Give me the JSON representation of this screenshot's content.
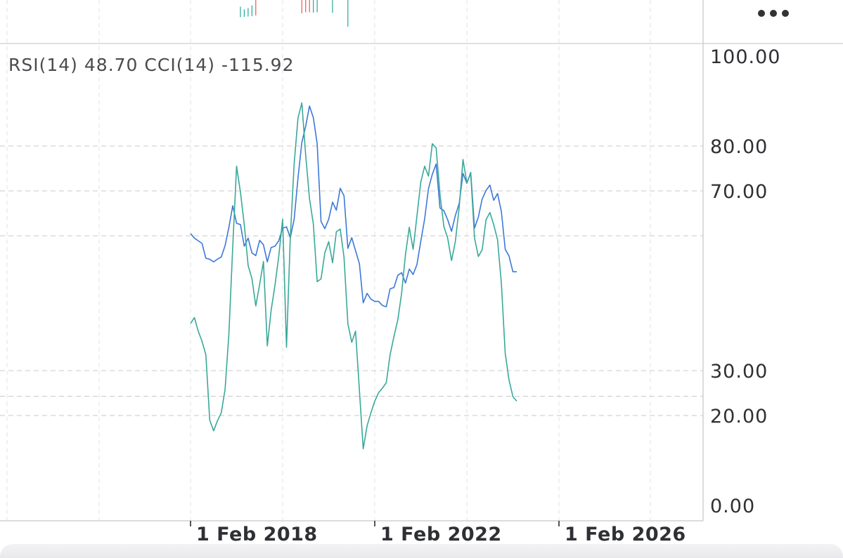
{
  "menu": {
    "more_icon": "more-horizontal-icon"
  },
  "indicator_header": {
    "rsi_label": "RSI(14)",
    "rsi_value": "48.70",
    "cci_label": "CCI(14)",
    "cci_value": "-115.92"
  },
  "colors": {
    "rsi": "#3d78d8",
    "cci": "#3aa899",
    "grid": "#c9c9c9",
    "up": "#26a69a",
    "down": "#ef5350"
  },
  "chart_data": {
    "type": "line",
    "ylim": [
      0,
      100
    ],
    "y_ticks": [
      "100.00",
      "80.00",
      "70.00",
      "30.00",
      "20.00",
      "0.00"
    ],
    "x_ticks": [
      {
        "date": "2018-02-01",
        "label": "1 Feb 2018"
      },
      {
        "date": "2022-02-01",
        "label": "1 Feb 2022"
      },
      {
        "date": "2026-02-01",
        "label": "1 Feb 2026"
      }
    ],
    "dashed_levels": [
      80,
      70,
      60,
      30,
      24.3,
      20
    ],
    "series": [
      {
        "name": "RSI(14)",
        "points": [
          [
            "2018-02",
            60.5
          ],
          [
            "2018-03",
            59.5
          ],
          [
            "2018-04",
            58.9
          ],
          [
            "2018-05",
            58.3
          ],
          [
            "2018-06",
            55
          ],
          [
            "2018-07",
            54.8
          ],
          [
            "2018-08",
            54.2
          ],
          [
            "2018-09",
            54.8
          ],
          [
            "2018-10",
            55.3
          ],
          [
            "2018-11",
            57.8
          ],
          [
            "2018-12",
            61.9
          ],
          [
            "2019-01",
            66.7
          ],
          [
            "2019-02",
            62.8
          ],
          [
            "2019-03",
            62.5
          ],
          [
            "2019-04",
            57.7
          ],
          [
            "2019-05",
            59.5
          ],
          [
            "2019-06",
            56.2
          ],
          [
            "2019-07",
            55.6
          ],
          [
            "2019-08",
            59
          ],
          [
            "2019-09",
            58
          ],
          [
            "2019-10",
            54.2
          ],
          [
            "2019-11",
            57.4
          ],
          [
            "2019-12",
            57.7
          ],
          [
            "2020-01",
            58.9
          ],
          [
            "2020-02",
            61.7
          ],
          [
            "2020-03",
            62
          ],
          [
            "2020-04",
            59.6
          ],
          [
            "2020-05",
            63.7
          ],
          [
            "2020-06",
            72.8
          ],
          [
            "2020-07",
            80.8
          ],
          [
            "2020-08",
            84.4
          ],
          [
            "2020-09",
            88.9
          ],
          [
            "2020-10",
            86.3
          ],
          [
            "2020-11",
            80.5
          ],
          [
            "2020-12",
            63.2
          ],
          [
            "2021-01",
            61.6
          ],
          [
            "2021-02",
            63.7
          ],
          [
            "2021-03",
            67.5
          ],
          [
            "2021-04",
            65.7
          ],
          [
            "2021-05",
            70.6
          ],
          [
            "2021-06",
            68.9
          ],
          [
            "2021-07",
            57.2
          ],
          [
            "2021-08",
            59.6
          ],
          [
            "2021-09",
            56.7
          ],
          [
            "2021-10",
            53.8
          ],
          [
            "2021-11",
            45.1
          ],
          [
            "2021-12",
            47.2
          ],
          [
            "2021-13",
            45.9
          ],
          [
            "2022-02",
            45.4
          ],
          [
            "2022-03",
            45.4
          ],
          [
            "2022-04",
            44.5
          ],
          [
            "2022-05",
            44.2
          ],
          [
            "2022-06",
            48.2
          ],
          [
            "2022-07",
            48.5
          ],
          [
            "2022-08",
            51.2
          ],
          [
            "2022-09",
            51.8
          ],
          [
            "2022-10",
            49.5
          ],
          [
            "2022-11",
            52.6
          ],
          [
            "2022-12",
            51.4
          ],
          [
            "2023-01",
            53.6
          ],
          [
            "2023-02",
            58.8
          ],
          [
            "2023-03",
            63.8
          ],
          [
            "2023-04",
            70.5
          ],
          [
            "2023-05",
            73.7
          ],
          [
            "2023-06",
            76
          ],
          [
            "2023-07",
            66.2
          ],
          [
            "2023-08",
            65.6
          ],
          [
            "2023-09",
            63.6
          ],
          [
            "2023-10",
            61
          ],
          [
            "2023-11",
            64.5
          ],
          [
            "2023-12",
            67.2
          ],
          [
            "2024-01",
            73.9
          ],
          [
            "2024-02",
            71.7
          ],
          [
            "2024-03",
            74.1
          ],
          [
            "2024-04",
            61.7
          ],
          [
            "2024-05",
            64.2
          ],
          [
            "2024-06",
            68.2
          ],
          [
            "2024-07",
            70.1
          ],
          [
            "2024-08",
            71.3
          ],
          [
            "2024-09",
            67.9
          ],
          [
            "2024-10",
            69.4
          ],
          [
            "2024-11",
            65.4
          ],
          [
            "2024-12",
            57
          ],
          [
            "2025-01",
            55.5
          ],
          [
            "2025-02",
            52
          ],
          [
            "2025-03",
            52
          ]
        ]
      },
      {
        "name": "CCI(14)",
        "points": [
          [
            "2018-02",
            40.5
          ],
          [
            "2018-03",
            41.8
          ],
          [
            "2018-04",
            38.8
          ],
          [
            "2018-05",
            36.5
          ],
          [
            "2018-06",
            33.5
          ],
          [
            "2018-07",
            19
          ],
          [
            "2018-08",
            16.6
          ],
          [
            "2018-09",
            18.8
          ],
          [
            "2018-10",
            20.6
          ],
          [
            "2018-11",
            25.8
          ],
          [
            "2018-12",
            38.3
          ],
          [
            "2019-01",
            57.5
          ],
          [
            "2019-02",
            75.5
          ],
          [
            "2019-03",
            69.7
          ],
          [
            "2019-04",
            62.5
          ],
          [
            "2019-05",
            53.4
          ],
          [
            "2019-06",
            50.5
          ],
          [
            "2019-07",
            44.4
          ],
          [
            "2019-08",
            49.2
          ],
          [
            "2019-09",
            54.3
          ],
          [
            "2019-10",
            35.5
          ],
          [
            "2019-11",
            43.4
          ],
          [
            "2019-12",
            49
          ],
          [
            "2020-01",
            55.5
          ],
          [
            "2020-02",
            63.7
          ],
          [
            "2020-03",
            35.2
          ],
          [
            "2020-04",
            59.7
          ],
          [
            "2020-05",
            76.1
          ],
          [
            "2020-06",
            86.2
          ],
          [
            "2020-07",
            89.6
          ],
          [
            "2020-08",
            77.9
          ],
          [
            "2020-09",
            68.3
          ],
          [
            "2020-10",
            62.6
          ],
          [
            "2020-11",
            49.8
          ],
          [
            "2020-12",
            50.4
          ],
          [
            "2021-01",
            56.2
          ],
          [
            "2021-02",
            58.7
          ],
          [
            "2021-03",
            54
          ],
          [
            "2021-04",
            60.9
          ],
          [
            "2021-05",
            61.5
          ],
          [
            "2021-06",
            55.2
          ],
          [
            "2021-07",
            40.4
          ],
          [
            "2021-08",
            36.3
          ],
          [
            "2021-09",
            38.8
          ],
          [
            "2021-10",
            25.6
          ],
          [
            "2021-11",
            12.6
          ],
          [
            "2021-12",
            17.7
          ],
          [
            "2021-13",
            20.6
          ],
          [
            "2022-02",
            23.2
          ],
          [
            "2022-03",
            25.1
          ],
          [
            "2022-04",
            26.1
          ],
          [
            "2022-05",
            27.3
          ],
          [
            "2022-06",
            33.5
          ],
          [
            "2022-07",
            37.6
          ],
          [
            "2022-08",
            41.3
          ],
          [
            "2022-09",
            47.2
          ],
          [
            "2022-10",
            55.8
          ],
          [
            "2022-11",
            61.9
          ],
          [
            "2022-12",
            57
          ],
          [
            "2023-01",
            64.4
          ],
          [
            "2023-02",
            72
          ],
          [
            "2023-03",
            75.5
          ],
          [
            "2023-04",
            73.3
          ],
          [
            "2023-05",
            80.5
          ],
          [
            "2023-06",
            79.6
          ],
          [
            "2023-07",
            69.2
          ],
          [
            "2023-08",
            62.1
          ],
          [
            "2023-09",
            59.5
          ],
          [
            "2023-10",
            54.5
          ],
          [
            "2023-11",
            58.7
          ],
          [
            "2023-12",
            66.3
          ],
          [
            "2024-01",
            77
          ],
          [
            "2024-02",
            71.8
          ],
          [
            "2024-03",
            73.9
          ],
          [
            "2024-04",
            59.5
          ],
          [
            "2024-05",
            55.4
          ],
          [
            "2024-06",
            56.9
          ],
          [
            "2024-07",
            63.6
          ],
          [
            "2024-08",
            65.2
          ],
          [
            "2024-09",
            62.5
          ],
          [
            "2024-10",
            59.1
          ],
          [
            "2024-11",
            49.4
          ],
          [
            "2024-12",
            33.8
          ],
          [
            "2025-01",
            27.9
          ],
          [
            "2025-02",
            24.2
          ],
          [
            "2025-03",
            23.2
          ]
        ]
      }
    ]
  },
  "price_pane_candles": [
    {
      "date": "2019-03",
      "color": "up",
      "high": 0.75,
      "low": 0.15
    },
    {
      "date": "2019-04",
      "color": "up",
      "high": 0.65,
      "low": 0.2
    },
    {
      "date": "2019-05",
      "color": "up",
      "high": 0.7,
      "low": 0.25
    },
    {
      "date": "2019-06",
      "color": "up",
      "high": 0.8,
      "low": 0.3
    },
    {
      "date": "2019-07",
      "color": "down",
      "high": 1,
      "low": 0.4
    },
    {
      "date": "2020-07",
      "color": "down",
      "high": 1,
      "low": 0.7
    },
    {
      "date": "2020-08",
      "color": "down",
      "high": 1,
      "low": 0.85
    },
    {
      "date": "2020-09",
      "color": "down",
      "high": 1,
      "low": 0.85
    },
    {
      "date": "2020-10",
      "color": "up",
      "high": 1,
      "low": 0.8
    },
    {
      "date": "2020-11",
      "color": "up",
      "high": 1,
      "low": 0.85
    },
    {
      "date": "2021-03",
      "color": "up",
      "high": 1,
      "low": 0.78
    },
    {
      "date": "2021-07",
      "color": "up",
      "high": 1,
      "low": 0.05
    }
  ]
}
